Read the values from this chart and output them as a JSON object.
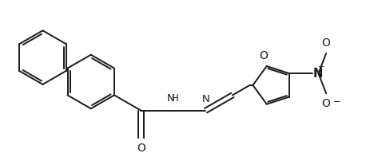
{
  "bg_color": "#ffffff",
  "line_color": "#1a1a1a",
  "line_width": 1.4,
  "font_size": 8.5,
  "figsize": [
    4.89,
    1.97
  ],
  "dpi": 100,
  "xlim": [
    0.0,
    1.0
  ],
  "ylim": [
    0.0,
    1.0
  ]
}
